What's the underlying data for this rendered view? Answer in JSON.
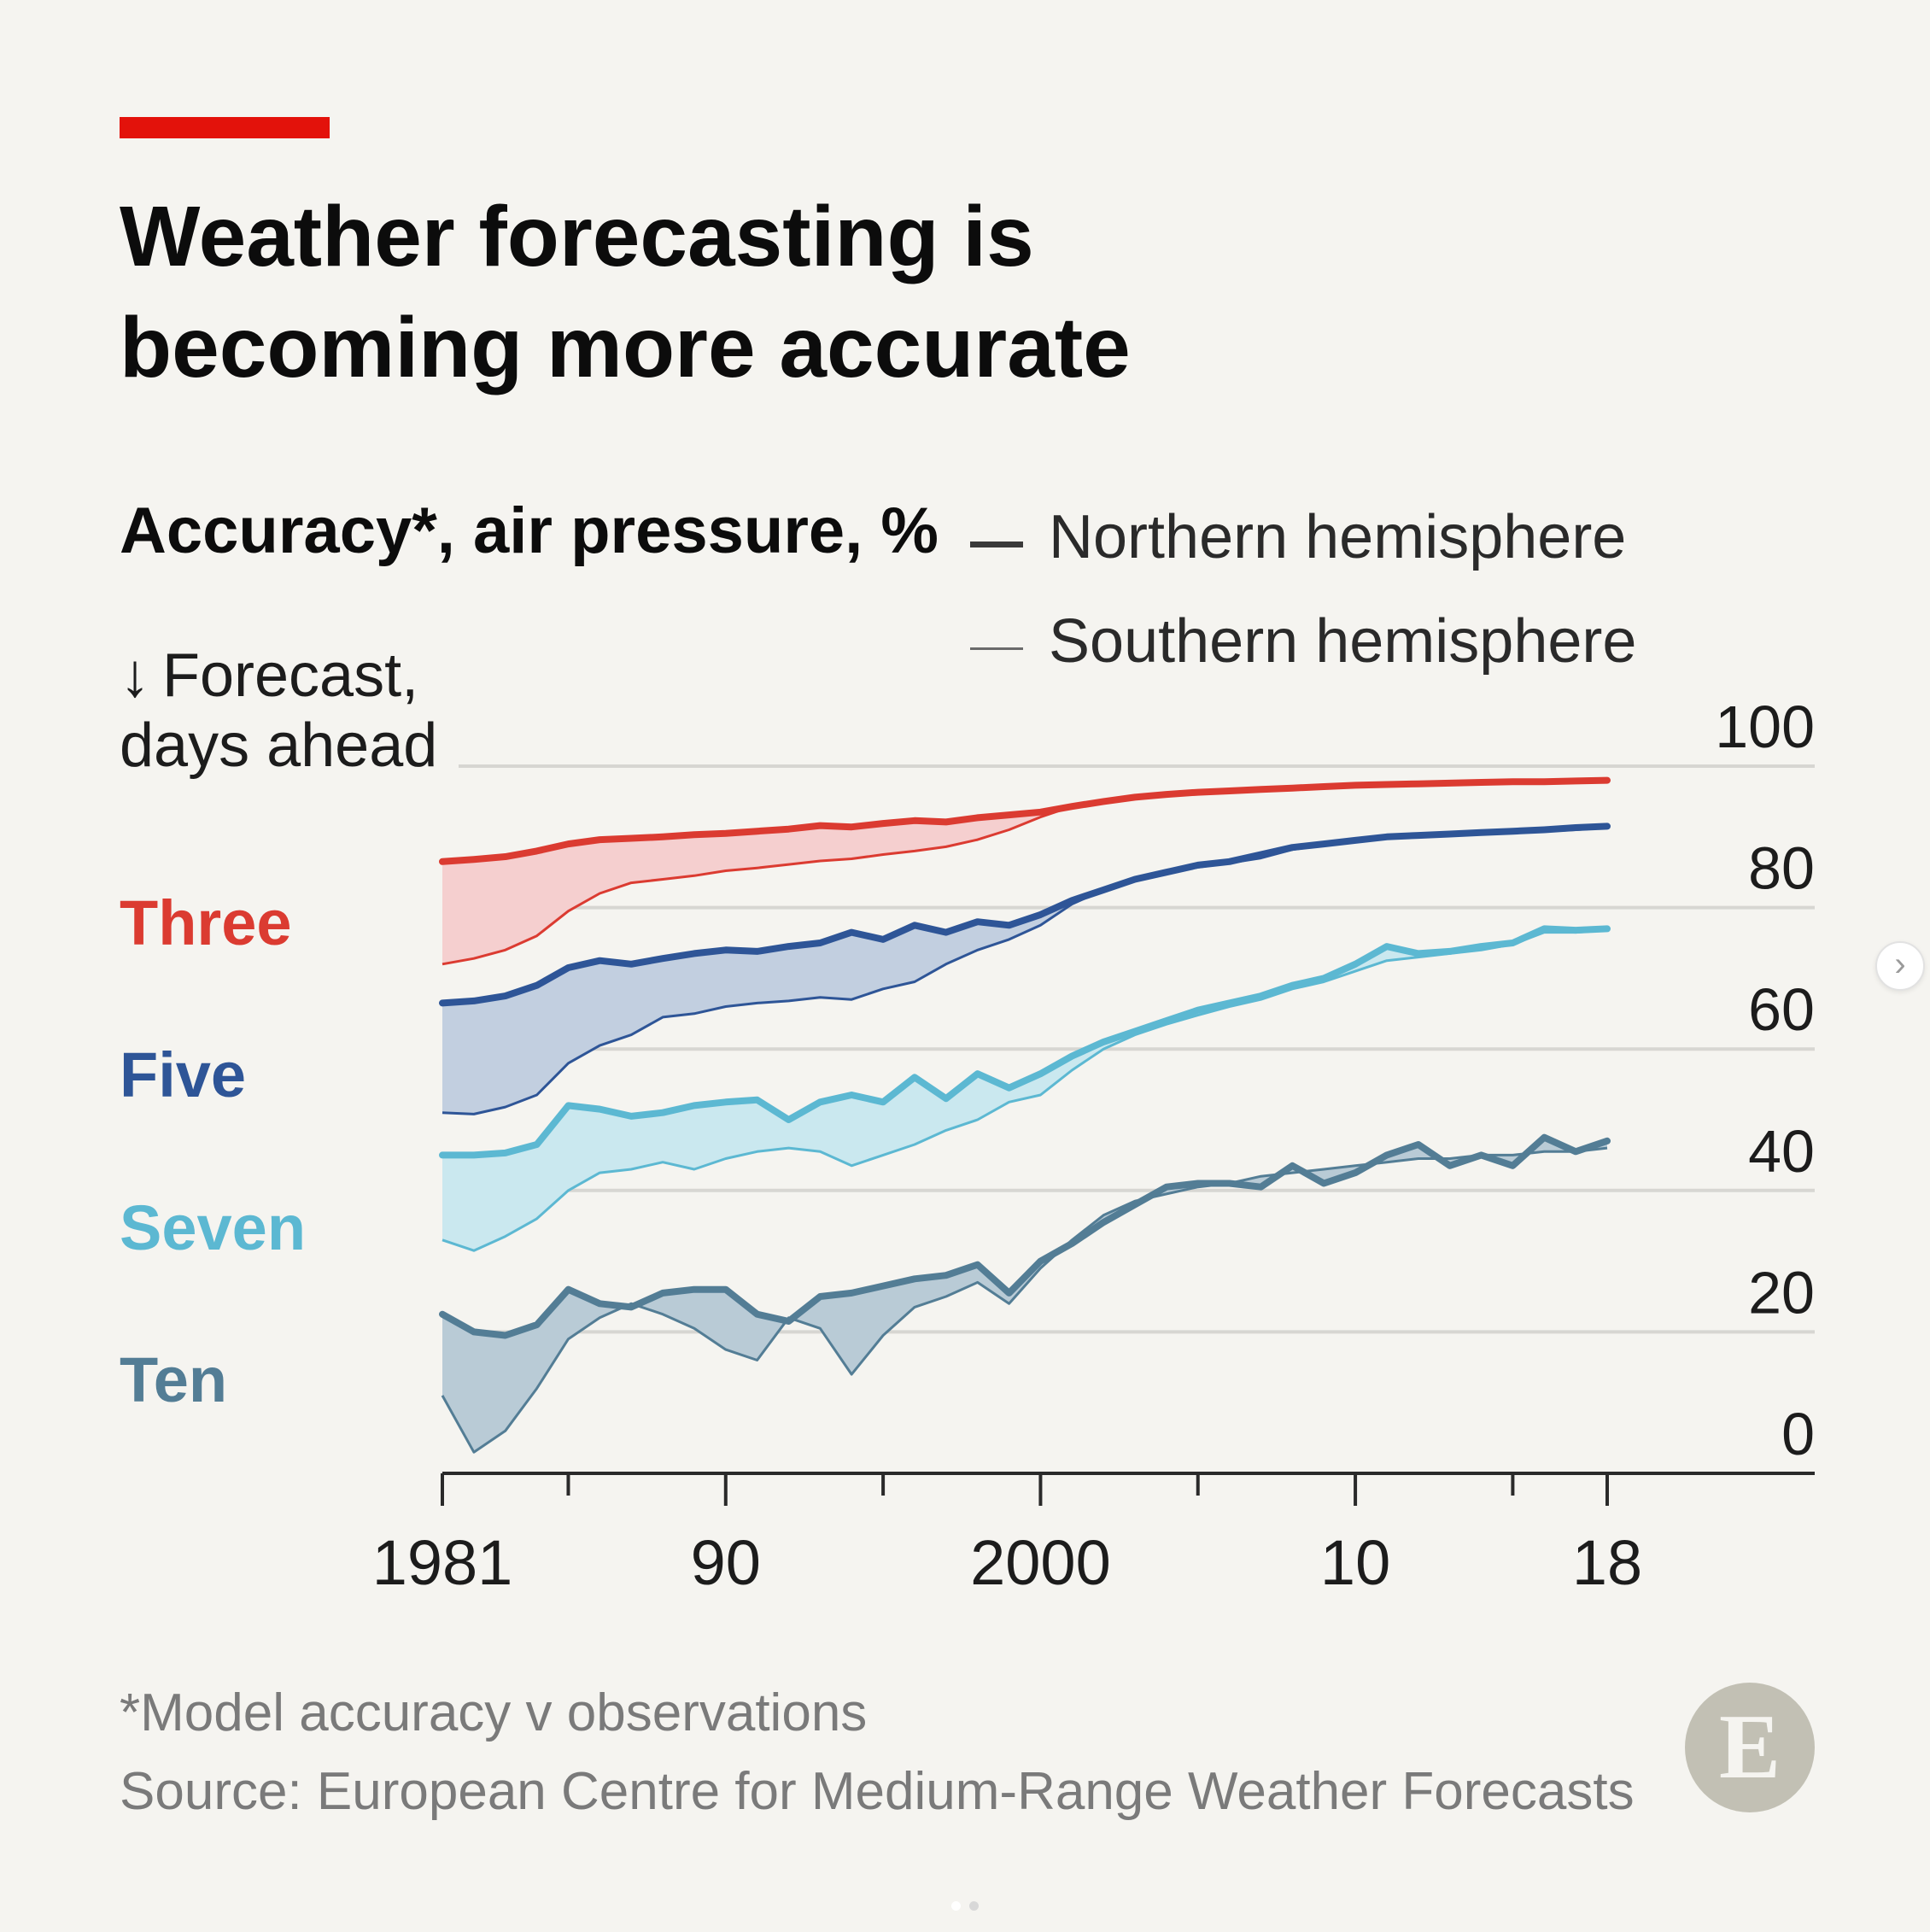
{
  "header": {
    "title_line1": "Weather forecasting is",
    "title_line2": "becoming more accurate",
    "accent_color": "#e3120b"
  },
  "footer": {
    "footnote": "*Model accuracy v observations",
    "source": "Source: European Centre for Medium-Range Weather Forecasts",
    "logo_letter": "E"
  },
  "chart_data": {
    "type": "area",
    "title": "Weather forecasting is becoming more accurate",
    "subtitle": "Accuracy*, air pressure, %",
    "ylabel_arrow": "↓",
    "ylabel_line1": "Forecast,",
    "ylabel_line2": "days ahead",
    "ylim": [
      0,
      100
    ],
    "xlim": [
      1981,
      2018
    ],
    "y_ticks": [
      0,
      20,
      40,
      60,
      80,
      100
    ],
    "y_tick_labels": [
      "0",
      "20",
      "40",
      "60",
      "80",
      "100"
    ],
    "x_ticks_major": [
      1981,
      1990,
      2000,
      2010,
      2018
    ],
    "x_tick_labels": [
      "1981",
      "90",
      "2000",
      "10",
      "18"
    ],
    "x_ticks_minor": [
      1985,
      1995,
      2005,
      2015
    ],
    "grid": true,
    "legend": [
      {
        "name": "Northern hemisphere",
        "style": "thick"
      },
      {
        "name": "Southern hemisphere",
        "style": "thin"
      }
    ],
    "legend_position": "top-right",
    "shading": "gap between Northern and Southern hemisphere",
    "series": [
      {
        "name": "Three",
        "color": "#db3b31",
        "fill": "#f5cfcf",
        "x": [
          1981,
          1982,
          1983,
          1984,
          1985,
          1986,
          1987,
          1988,
          1989,
          1990,
          1991,
          1992,
          1993,
          1994,
          1995,
          1996,
          1997,
          1998,
          1999,
          2000,
          2001,
          2002,
          2003,
          2004,
          2005,
          2006,
          2007,
          2008,
          2009,
          2010,
          2011,
          2012,
          2013,
          2014,
          2015,
          2016,
          2017,
          2018
        ],
        "north": [
          86.5,
          86.8,
          87.2,
          88.0,
          89.0,
          89.6,
          89.8,
          90.0,
          90.3,
          90.5,
          90.8,
          91.1,
          91.6,
          91.4,
          91.9,
          92.3,
          92.1,
          92.7,
          93.1,
          93.5,
          94.3,
          95.0,
          95.6,
          96.0,
          96.3,
          96.5,
          96.7,
          96.9,
          97.1,
          97.3,
          97.4,
          97.5,
          97.6,
          97.7,
          97.8,
          97.8,
          97.9,
          98.0
        ],
        "south": [
          72.0,
          72.8,
          74.0,
          76.0,
          79.5,
          82.0,
          83.5,
          84.0,
          84.5,
          85.2,
          85.6,
          86.1,
          86.6,
          86.9,
          87.5,
          88.0,
          88.6,
          89.6,
          91.0,
          92.8,
          94.3,
          95.2,
          95.7,
          96.0,
          96.3,
          96.5,
          96.7,
          96.9,
          97.1,
          97.3,
          97.4,
          97.5,
          97.6,
          97.7,
          97.8,
          97.8,
          97.9,
          98.0
        ]
      },
      {
        "name": "Five",
        "color": "#2e5597",
        "fill": "#c2cfe0",
        "x": [
          1981,
          1982,
          1983,
          1984,
          1985,
          1986,
          1987,
          1988,
          1989,
          1990,
          1991,
          1992,
          1993,
          1994,
          1995,
          1996,
          1997,
          1998,
          1999,
          2000,
          2001,
          2002,
          2003,
          2004,
          2005,
          2006,
          2007,
          2008,
          2009,
          2010,
          2011,
          2012,
          2013,
          2014,
          2015,
          2016,
          2017,
          2018
        ],
        "north": [
          66.5,
          66.8,
          67.5,
          69.0,
          71.5,
          72.5,
          72.0,
          72.8,
          73.5,
          74.0,
          73.8,
          74.5,
          75.0,
          76.5,
          75.5,
          77.5,
          76.5,
          78.0,
          77.5,
          79.0,
          81.0,
          82.5,
          84.0,
          85.0,
          86.0,
          86.5,
          87.5,
          88.5,
          89.0,
          89.5,
          90.0,
          90.2,
          90.4,
          90.6,
          90.8,
          91.0,
          91.3,
          91.5
        ],
        "south": [
          51.0,
          50.8,
          51.8,
          53.5,
          58.0,
          60.5,
          62.0,
          64.5,
          65.0,
          66.0,
          66.5,
          66.8,
          67.3,
          67.0,
          68.5,
          69.5,
          72.0,
          74.0,
          75.5,
          77.5,
          80.5,
          82.5,
          84.0,
          85.0,
          85.7,
          86.3,
          87.0,
          88.2,
          88.8,
          89.3,
          89.8,
          90.0,
          90.2,
          90.4,
          90.6,
          90.8,
          91.0,
          91.3
        ]
      },
      {
        "name": "Seven",
        "color": "#5cb8d2",
        "fill": "#cae8ef",
        "x": [
          1981,
          1982,
          1983,
          1984,
          1985,
          1986,
          1987,
          1988,
          1989,
          1990,
          1991,
          1992,
          1993,
          1994,
          1995,
          1996,
          1997,
          1998,
          1999,
          2000,
          2001,
          2002,
          2003,
          2004,
          2005,
          2006,
          2007,
          2008,
          2009,
          2010,
          2011,
          2012,
          2013,
          2014,
          2015,
          2016,
          2017,
          2018
        ],
        "north": [
          45.0,
          45.0,
          45.3,
          46.5,
          52.0,
          51.5,
          50.5,
          51.0,
          52.0,
          52.5,
          52.8,
          50.0,
          52.5,
          53.5,
          52.5,
          56.0,
          53.0,
          56.5,
          54.5,
          56.5,
          59.0,
          61.0,
          62.5,
          64.0,
          65.5,
          66.5,
          67.5,
          69.0,
          70.0,
          72.0,
          74.5,
          73.5,
          73.8,
          74.5,
          75.0,
          77.0,
          76.8,
          77.0
        ],
        "south": [
          33.0,
          31.5,
          33.5,
          36.0,
          40.0,
          42.5,
          43.0,
          44.0,
          43.0,
          44.5,
          45.5,
          46.0,
          45.5,
          43.5,
          45.0,
          46.5,
          48.5,
          50.0,
          52.5,
          53.5,
          57.0,
          60.0,
          62.0,
          63.5,
          64.8,
          66.0,
          67.0,
          68.5,
          69.5,
          71.0,
          72.5,
          73.0,
          73.5,
          74.0,
          74.8,
          76.5,
          76.5,
          76.8
        ]
      },
      {
        "name": "Ten",
        "color": "#537d95",
        "fill": "#b9cbd6",
        "x": [
          1981,
          1982,
          1983,
          1984,
          1985,
          1986,
          1987,
          1988,
          1989,
          1990,
          1991,
          1992,
          1993,
          1994,
          1995,
          1996,
          1997,
          1998,
          1999,
          2000,
          2001,
          2002,
          2003,
          2004,
          2005,
          2006,
          2007,
          2008,
          2009,
          2010,
          2011,
          2012,
          2013,
          2014,
          2015,
          2016,
          2017,
          2018
        ],
        "north": [
          22.5,
          20.0,
          19.5,
          21.0,
          26.0,
          24.0,
          23.5,
          25.5,
          26.0,
          26.0,
          22.5,
          21.5,
          25.0,
          25.5,
          26.5,
          27.5,
          28.0,
          29.5,
          25.5,
          30.0,
          32.5,
          35.5,
          38.0,
          40.5,
          41.0,
          41.0,
          40.5,
          43.5,
          41.0,
          42.5,
          45.0,
          46.5,
          43.5,
          45.0,
          43.5,
          47.5,
          45.5,
          47.0
        ],
        "south": [
          11.0,
          3.0,
          6.0,
          12.0,
          19.0,
          22.0,
          24.0,
          22.5,
          20.5,
          17.5,
          16.0,
          22.0,
          20.5,
          14.0,
          19.5,
          23.5,
          25.0,
          27.0,
          24.0,
          29.0,
          33.0,
          36.5,
          38.5,
          39.5,
          40.5,
          41.0,
          42.0,
          42.5,
          43.0,
          43.5,
          44.0,
          44.5,
          44.5,
          45.0,
          45.0,
          45.5,
          45.5,
          46.0
        ]
      }
    ]
  }
}
